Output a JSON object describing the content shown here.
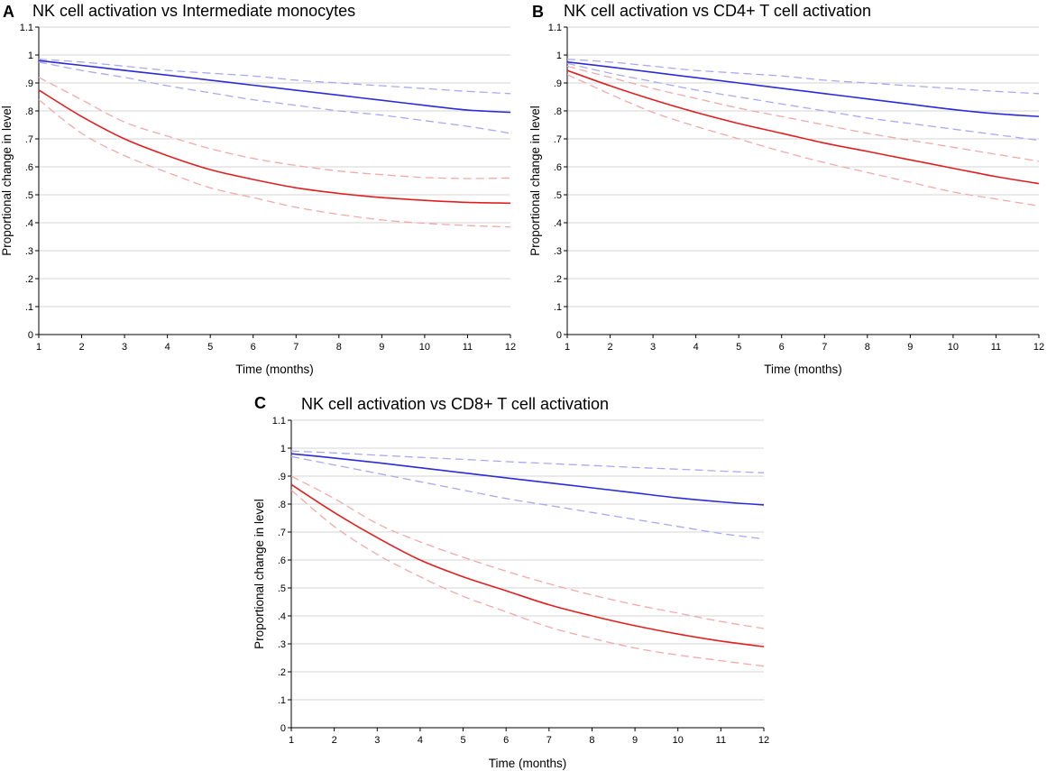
{
  "chart_data": [
    {
      "type": "line",
      "panel": "A",
      "title": "NK cell activation vs Intermediate monocytes",
      "xlabel": "Time (months)",
      "ylabel": "Proportional change in level",
      "xlim": [
        1,
        12
      ],
      "ylim": [
        0,
        1.1
      ],
      "xticks": [
        "1",
        "2",
        "3",
        "4",
        "5",
        "6",
        "7",
        "8",
        "9",
        "10",
        "11",
        "12"
      ],
      "yticks": [
        "0",
        ".1",
        ".2",
        ".3",
        ".4",
        ".5",
        ".6",
        ".7",
        ".8",
        ".9",
        "1",
        "1.1"
      ],
      "grid": true,
      "x": [
        1,
        2,
        3,
        4,
        5,
        6,
        7,
        8,
        9,
        10,
        11,
        12
      ],
      "series": [
        {
          "name": "NK cell activation",
          "color": "#2b2bd9",
          "style": "solid",
          "values": [
            0.98,
            0.963,
            0.945,
            0.928,
            0.91,
            0.892,
            0.874,
            0.856,
            0.838,
            0.82,
            0.803,
            0.795
          ]
        },
        {
          "name": "NK cell activation upper CI",
          "color": "#a9a9f2",
          "style": "dashed",
          "values": [
            0.985,
            0.975,
            0.96,
            0.945,
            0.935,
            0.925,
            0.91,
            0.9,
            0.89,
            0.88,
            0.87,
            0.862
          ]
        },
        {
          "name": "NK cell activation lower CI",
          "color": "#a9a9f2",
          "style": "dashed",
          "values": [
            0.975,
            0.945,
            0.92,
            0.89,
            0.865,
            0.84,
            0.82,
            0.8,
            0.785,
            0.765,
            0.745,
            0.72
          ]
        },
        {
          "name": "Intermediate monocytes",
          "color": "#e02020",
          "style": "solid",
          "values": [
            0.875,
            0.78,
            0.7,
            0.64,
            0.59,
            0.555,
            0.525,
            0.505,
            0.49,
            0.48,
            0.473,
            0.47
          ]
        },
        {
          "name": "Intermediate monocytes upper CI",
          "color": "#f2a9a9",
          "style": "dashed",
          "values": [
            0.92,
            0.84,
            0.76,
            0.71,
            0.665,
            0.63,
            0.605,
            0.585,
            0.572,
            0.562,
            0.558,
            0.56
          ]
        },
        {
          "name": "Intermediate monocytes lower CI",
          "color": "#f2a9a9",
          "style": "dashed",
          "values": [
            0.84,
            0.72,
            0.64,
            0.58,
            0.525,
            0.49,
            0.455,
            0.43,
            0.41,
            0.398,
            0.39,
            0.385
          ]
        }
      ]
    },
    {
      "type": "line",
      "panel": "B",
      "title": "NK cell activation vs CD4+ T cell activation",
      "xlabel": "Time (months)",
      "ylabel": "Proportional change in level",
      "xlim": [
        1,
        12
      ],
      "ylim": [
        0,
        1.1
      ],
      "xticks": [
        "1",
        "2",
        "3",
        "4",
        "5",
        "6",
        "7",
        "8",
        "9",
        "10",
        "11",
        "12"
      ],
      "yticks": [
        "0",
        ".1",
        ".2",
        ".3",
        ".4",
        ".5",
        ".6",
        ".7",
        ".8",
        ".9",
        "1",
        "1.1"
      ],
      "grid": true,
      "x": [
        1,
        2,
        3,
        4,
        5,
        6,
        7,
        8,
        9,
        10,
        11,
        12
      ],
      "series": [
        {
          "name": "NK cell activation",
          "color": "#2b2bd9",
          "style": "solid",
          "values": [
            0.975,
            0.957,
            0.938,
            0.919,
            0.9,
            0.881,
            0.862,
            0.843,
            0.824,
            0.805,
            0.79,
            0.78
          ]
        },
        {
          "name": "NK cell activation upper CI",
          "color": "#a9a9f2",
          "style": "dashed",
          "values": [
            0.985,
            0.975,
            0.96,
            0.945,
            0.935,
            0.925,
            0.91,
            0.9,
            0.89,
            0.88,
            0.87,
            0.862
          ]
        },
        {
          "name": "NK cell activation lower CI",
          "color": "#a9a9f2",
          "style": "dashed",
          "values": [
            0.97,
            0.935,
            0.905,
            0.875,
            0.85,
            0.825,
            0.8,
            0.775,
            0.755,
            0.735,
            0.715,
            0.695
          ]
        },
        {
          "name": "CD4+ T cell activation",
          "color": "#e02020",
          "style": "solid",
          "values": [
            0.945,
            0.89,
            0.84,
            0.795,
            0.755,
            0.72,
            0.685,
            0.655,
            0.625,
            0.595,
            0.565,
            0.54
          ]
        },
        {
          "name": "CD4+ T cell activation upper CI",
          "color": "#f2a9a9",
          "style": "dashed",
          "values": [
            0.96,
            0.92,
            0.88,
            0.845,
            0.81,
            0.78,
            0.75,
            0.72,
            0.695,
            0.67,
            0.645,
            0.62
          ]
        },
        {
          "name": "CD4+ T cell activation lower CI",
          "color": "#f2a9a9",
          "style": "dashed",
          "values": [
            0.93,
            0.86,
            0.795,
            0.745,
            0.7,
            0.655,
            0.615,
            0.58,
            0.545,
            0.51,
            0.485,
            0.46
          ]
        }
      ]
    },
    {
      "type": "line",
      "panel": "C",
      "title": "NK cell activation vs CD8+ T cell activation",
      "xlabel": "Time (months)",
      "ylabel": "Proportional change in level",
      "xlim": [
        1,
        12
      ],
      "ylim": [
        0,
        1.1
      ],
      "xticks": [
        "1",
        "2",
        "3",
        "4",
        "5",
        "6",
        "7",
        "8",
        "9",
        "10",
        "11",
        "12"
      ],
      "yticks": [
        "0",
        ".1",
        ".2",
        ".3",
        ".4",
        ".5",
        ".6",
        ".7",
        ".8",
        ".9",
        "1",
        "1.1"
      ],
      "grid": true,
      "x": [
        1,
        2,
        3,
        4,
        5,
        6,
        7,
        8,
        9,
        10,
        11,
        12
      ],
      "series": [
        {
          "name": "NK cell activation",
          "color": "#2b2bd9",
          "style": "solid",
          "values": [
            0.98,
            0.965,
            0.948,
            0.93,
            0.912,
            0.894,
            0.876,
            0.858,
            0.84,
            0.822,
            0.808,
            0.797
          ]
        },
        {
          "name": "NK cell activation upper CI",
          "color": "#a9a9f2",
          "style": "dashed",
          "values": [
            0.99,
            0.983,
            0.975,
            0.967,
            0.96,
            0.952,
            0.945,
            0.938,
            0.931,
            0.925,
            0.918,
            0.912
          ]
        },
        {
          "name": "NK cell activation lower CI",
          "color": "#a9a9f2",
          "style": "dashed",
          "values": [
            0.97,
            0.94,
            0.91,
            0.88,
            0.85,
            0.82,
            0.795,
            0.77,
            0.745,
            0.72,
            0.695,
            0.675
          ]
        },
        {
          "name": "CD8+ T cell activation",
          "color": "#e02020",
          "style": "solid",
          "values": [
            0.87,
            0.77,
            0.68,
            0.6,
            0.54,
            0.49,
            0.44,
            0.4,
            0.365,
            0.335,
            0.31,
            0.29
          ]
        },
        {
          "name": "CD8+ T cell activation upper CI",
          "color": "#f2a9a9",
          "style": "dashed",
          "values": [
            0.9,
            0.82,
            0.73,
            0.665,
            0.61,
            0.56,
            0.515,
            0.475,
            0.44,
            0.41,
            0.38,
            0.355
          ]
        },
        {
          "name": "CD8+ T cell activation lower CI",
          "color": "#f2a9a9",
          "style": "dashed",
          "values": [
            0.85,
            0.72,
            0.62,
            0.54,
            0.47,
            0.415,
            0.36,
            0.32,
            0.285,
            0.26,
            0.24,
            0.22
          ]
        }
      ]
    }
  ]
}
